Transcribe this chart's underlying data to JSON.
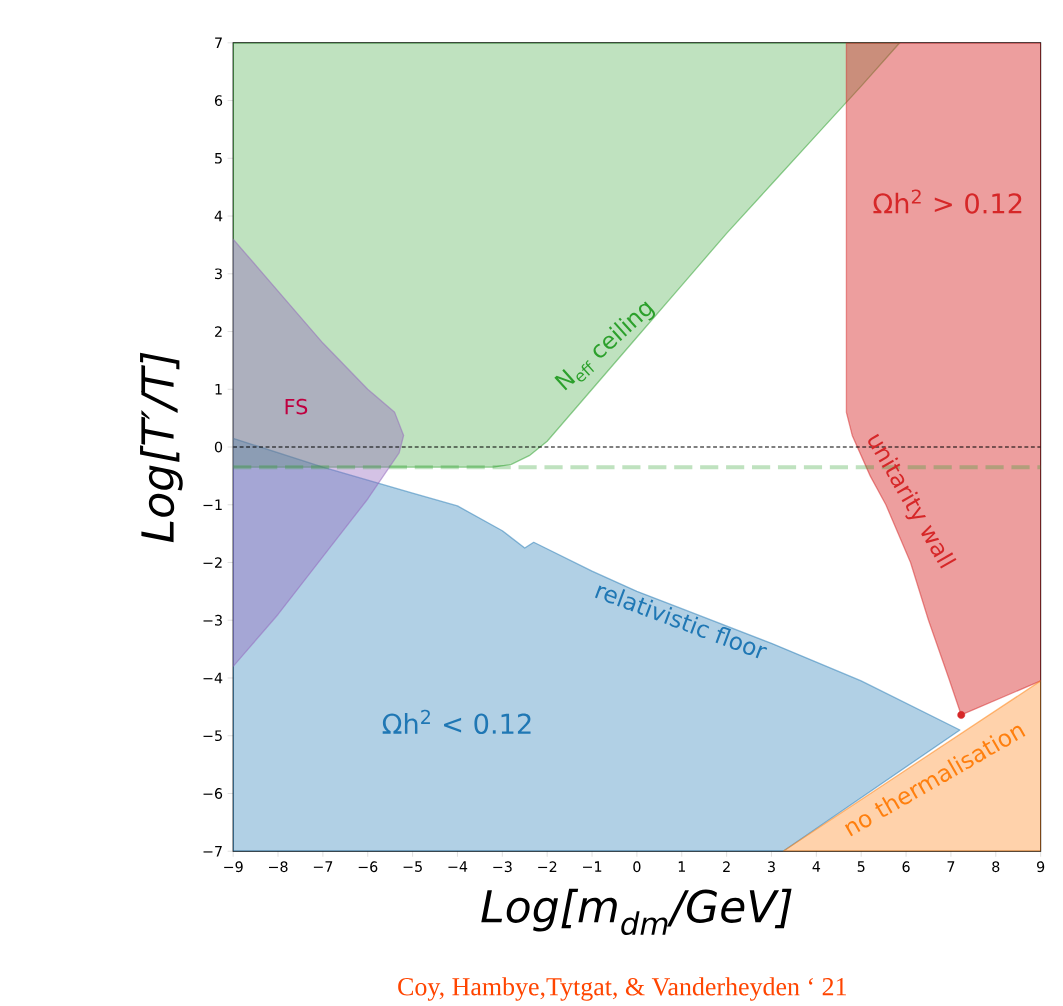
{
  "chart_data": {
    "type": "area",
    "xlabel": "Log[m$_{dm}$/GeV]",
    "ylabel": "Log[T′/T]",
    "xlim": [
      -9,
      9
    ],
    "ylim": [
      -7,
      7
    ],
    "xticks": [
      {
        "value": -9,
        "label": "−9"
      },
      {
        "value": -8,
        "label": "−8"
      },
      {
        "value": -7,
        "label": "−7"
      },
      {
        "value": -6,
        "label": "−6"
      },
      {
        "value": -5,
        "label": "−5"
      },
      {
        "value": -4,
        "label": "−4"
      },
      {
        "value": -3,
        "label": "−3"
      },
      {
        "value": -2,
        "label": "−2"
      },
      {
        "value": -1,
        "label": "−1"
      },
      0,
      1,
      2,
      3,
      4,
      5,
      6,
      7,
      8,
      9
    ],
    "yticks": [
      {
        "value": -7,
        "label": "−7"
      },
      {
        "value": -6,
        "label": "−6"
      },
      {
        "value": -5,
        "label": "−5"
      },
      {
        "value": -4,
        "label": "−4"
      },
      {
        "value": -3,
        "label": "−3"
      },
      {
        "value": -2,
        "label": "−2"
      },
      {
        "value": -1,
        "label": "−1"
      },
      0,
      1,
      2,
      3,
      4,
      5,
      6,
      7
    ],
    "series": [
      {
        "name": "relativistic floor",
        "color": "#1f77b4",
        "x": [
          -9,
          -7,
          -5,
          -4,
          -3,
          -2.5,
          -2.3,
          -1,
          0,
          1,
          3,
          5,
          7.2,
          3.26,
          -9
        ],
        "values": [
          0.15,
          -0.35,
          -0.8,
          -1.02,
          -1.45,
          -1.75,
          -1.65,
          -2.15,
          -2.5,
          -2.8,
          -3.4,
          -4.05,
          -4.9,
          -7,
          -7
        ]
      },
      {
        "name": "N$_{eff}$ ceiling",
        "color": "#2ca02c",
        "x": [
          -9,
          -3.2,
          -2.8,
          -2.4,
          -2,
          -1,
          0,
          1,
          2,
          3,
          4,
          5,
          5.86,
          -9
        ],
        "values": [
          -0.35,
          -0.35,
          -0.3,
          -0.15,
          0.1,
          1.0,
          1.9,
          2.8,
          3.7,
          4.55,
          5.4,
          6.25,
          7,
          7
        ]
      },
      {
        "name": "unitarity wall",
        "color": "#d62728",
        "x": [
          4.67,
          4.67,
          4.8,
          5.2,
          5.55,
          6.1,
          6.5,
          6.95,
          7.23,
          9,
          9
        ],
        "values": [
          7,
          0.6,
          0.2,
          -0.5,
          -1,
          -2,
          -3,
          -4,
          -4.64,
          -4.05,
          7
        ]
      },
      {
        "name": "no thermalisation",
        "color": "#ff7f0e",
        "x": [
          3.26,
          9,
          9
        ],
        "values": [
          -7,
          -4.05,
          -7
        ]
      },
      {
        "name": "FS",
        "color": "#9467bd",
        "x": [
          -9,
          -8,
          -7,
          -6,
          -5.4,
          -5.2,
          -5.3,
          -6,
          -7,
          -8,
          -9
        ],
        "values": [
          3.6,
          2.7,
          1.8,
          1.0,
          0.6,
          0.2,
          -0.1,
          -0.9,
          -1.9,
          -2.9,
          -3.8
        ]
      },
      {
        "type": "scatter",
        "color": "#d62728",
        "x": [
          7.23
        ],
        "values": [
          -4.64
        ]
      }
    ],
    "ref_lines": [
      {
        "axis": "y",
        "value": 0,
        "color": "#000000",
        "line_style": "dashed"
      },
      {
        "axis": "y",
        "value": -0.35,
        "color": "#2ca02c",
        "line_style": "dashed"
      }
    ],
    "annotations": [
      "Ωh$^{2}$ > 0.12",
      "Ωh$^{2}$ < 0.12",
      "Coy, Hambye,Tytgat, & Vanderheyden ‘ 21"
    ]
  }
}
